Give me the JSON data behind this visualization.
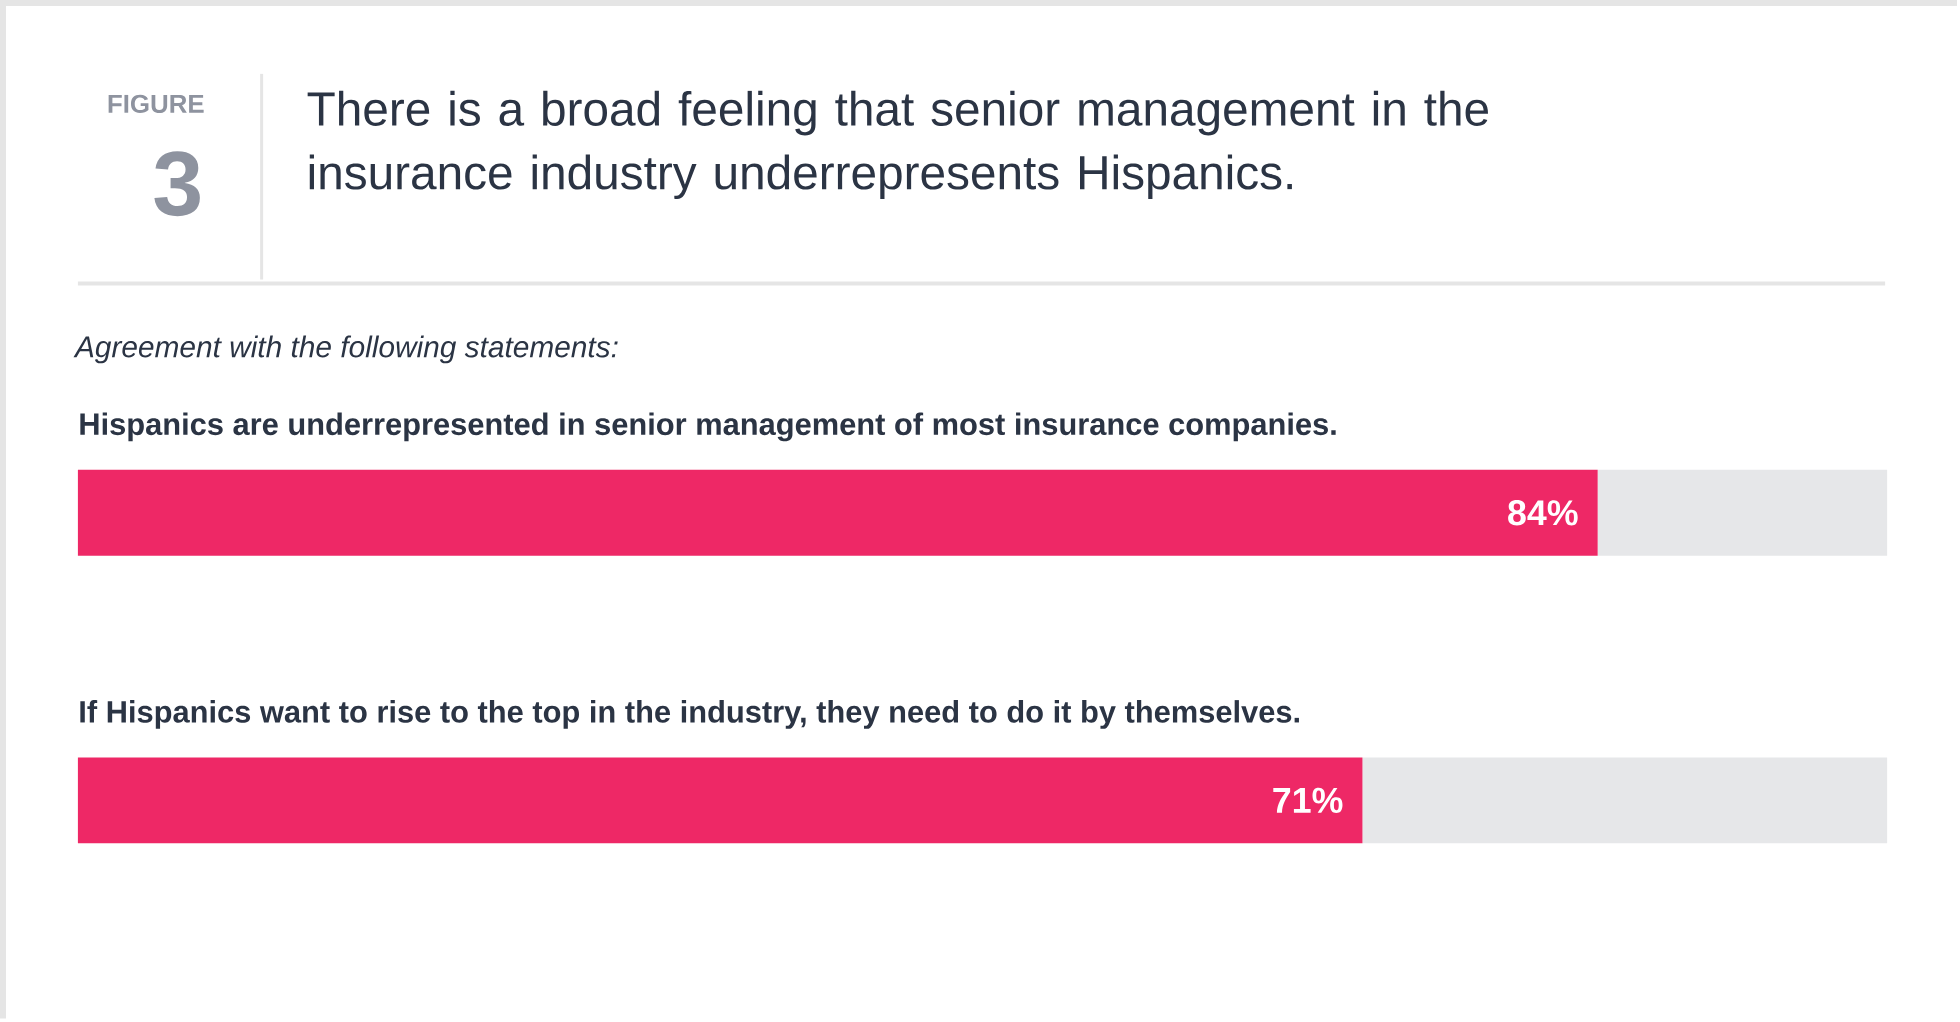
{
  "chart_data": {
    "type": "bar",
    "orientation": "horizontal",
    "stacked": true,
    "title": "There is a broad feeling that senior management in the insurance industry underrepresents Hispanics.",
    "subtitle": "Agreement with the following statements:",
    "annotations": [
      "FIGURE",
      "3"
    ],
    "categories": [
      "Hispanics are underrepresented in senior management of most insurance companies.",
      "If Hispanics want to rise to the top in the industry, they need to do it by themselves."
    ],
    "series": [
      {
        "color": "#ee2866",
        "values": [
          84,
          71
        ],
        "value_labels": [
          "84%",
          "71%"
        ]
      },
      {
        "color": "#e6e7e9",
        "values": [
          16,
          29
        ]
      }
    ],
    "xlim": [
      0,
      100
    ],
    "tick_labels": false
  }
}
